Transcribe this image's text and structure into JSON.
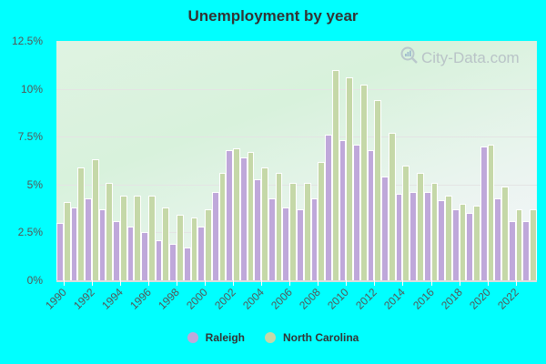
{
  "header": {
    "title": "Unemployment by year"
  },
  "watermark": {
    "text": "City-Data.com",
    "icon": "magnifier-chart-icon"
  },
  "legend": [
    {
      "label": "Raleigh",
      "color": "#bfa8da"
    },
    {
      "label": "North Carolina",
      "color": "#c5d8a8"
    }
  ],
  "chart_data": {
    "type": "bar",
    "title": "Unemployment by year",
    "xlabel": "",
    "ylabel": "",
    "ylim": [
      0,
      12.5
    ],
    "yticks": [
      "0%",
      "2.5%",
      "5%",
      "7.5%",
      "10%",
      "12.5%"
    ],
    "ytick_values": [
      0,
      2.5,
      5,
      7.5,
      10,
      12.5
    ],
    "grid": true,
    "legend_position": "bottom",
    "categories": [
      1990,
      1991,
      1992,
      1993,
      1994,
      1995,
      1996,
      1997,
      1998,
      1999,
      2000,
      2001,
      2002,
      2003,
      2004,
      2005,
      2006,
      2007,
      2008,
      2009,
      2010,
      2011,
      2012,
      2013,
      2014,
      2015,
      2016,
      2017,
      2018,
      2019,
      2020,
      2021,
      2022,
      2023
    ],
    "xtick_labels": [
      "1990",
      "1992",
      "1994",
      "1996",
      "1998",
      "2000",
      "2002",
      "2004",
      "2006",
      "2008",
      "2010",
      "2012",
      "2014",
      "2016",
      "2018",
      "2020",
      "2022"
    ],
    "series": [
      {
        "name": "Raleigh",
        "color": "#bfa8da",
        "values": [
          3.0,
          3.8,
          4.3,
          3.7,
          3.1,
          2.8,
          2.5,
          2.1,
          1.9,
          1.7,
          2.8,
          4.6,
          6.8,
          6.4,
          5.3,
          4.3,
          3.8,
          3.7,
          4.3,
          7.6,
          7.3,
          7.1,
          6.8,
          5.4,
          4.5,
          4.6,
          4.6,
          4.2,
          3.7,
          3.5,
          7.0,
          4.3,
          3.1,
          3.1
        ]
      },
      {
        "name": "North Carolina",
        "color": "#c5d8a8",
        "values": [
          4.1,
          5.9,
          6.3,
          5.1,
          4.4,
          4.4,
          4.4,
          3.8,
          3.4,
          3.3,
          3.7,
          5.6,
          6.9,
          6.7,
          5.9,
          5.6,
          5.1,
          5.1,
          6.2,
          11.0,
          10.6,
          10.2,
          9.4,
          7.7,
          6.0,
          5.6,
          5.1,
          4.4,
          4.0,
          3.9,
          7.1,
          4.9,
          3.7,
          3.7
        ]
      }
    ]
  }
}
